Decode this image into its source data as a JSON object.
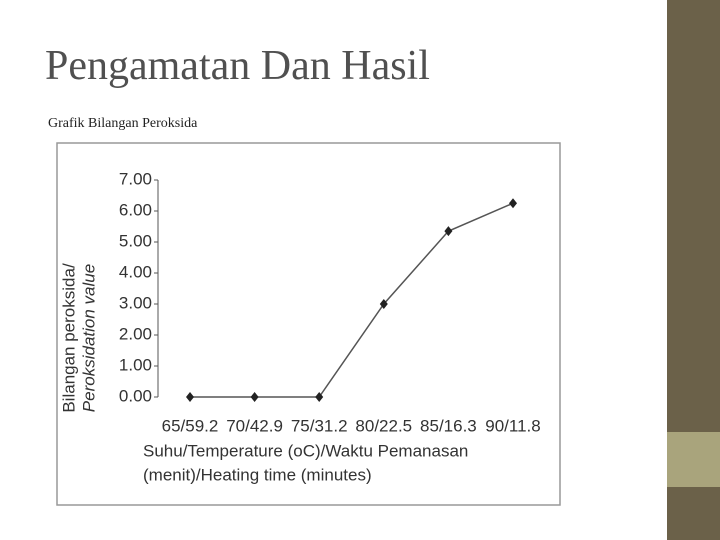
{
  "slide": {
    "title": "Pengamatan Dan Hasil",
    "subtitle": "Grafik Bilangan Peroksida"
  },
  "chart_data": {
    "type": "line",
    "y_label": [
      "Bilangan peroksida/",
      "Peroksidation value"
    ],
    "x_label": [
      "Suhu/Temperature (oC)/Waktu Pemanasan",
      "(menit)/Heating time (minutes)"
    ],
    "categories": [
      "65/59.2",
      "70/42.9",
      "75/31.2",
      "80/22.5",
      "85/16.3",
      "90/11.8"
    ],
    "values": [
      0,
      0,
      0,
      3.0,
      5.35,
      6.25
    ],
    "color": "#555555",
    "ylim": [
      0,
      7
    ],
    "yticks": [
      {
        "value": 0,
        "label": "0.00"
      },
      {
        "value": 1,
        "label": "1.00"
      },
      {
        "value": 2,
        "label": "2.00"
      },
      {
        "value": 3,
        "label": "3.00"
      },
      {
        "value": 4,
        "label": "4.00"
      },
      {
        "value": 5,
        "label": "5.00"
      },
      {
        "value": 6,
        "label": "6.00"
      },
      {
        "value": 7,
        "label": "7.00"
      }
    ]
  }
}
